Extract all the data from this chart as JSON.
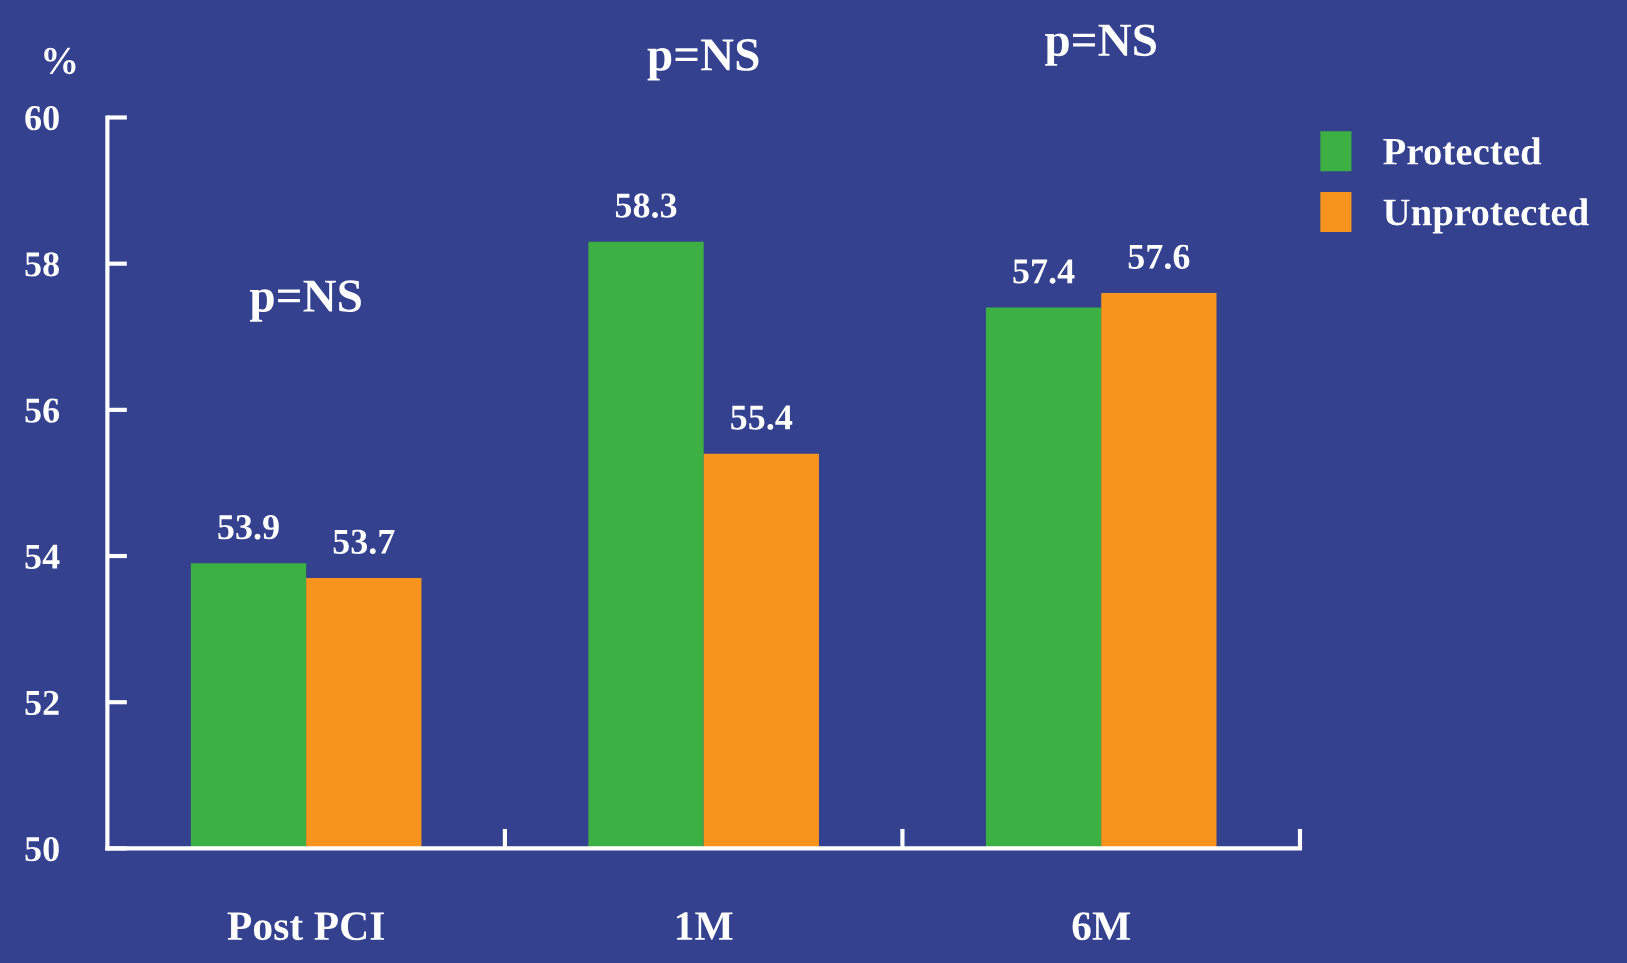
{
  "chart_data": {
    "type": "bar",
    "ylabel": "%",
    "categories": [
      "Post PCI",
      "1M",
      "6M"
    ],
    "series": [
      {
        "name": "Protected",
        "color": "#3cb043",
        "values": [
          53.9,
          58.3,
          57.4
        ]
      },
      {
        "name": "Unprotected",
        "color": "#f7941d",
        "values": [
          53.7,
          55.4,
          57.6
        ]
      }
    ],
    "ylim": [
      50,
      60
    ],
    "yticks": [
      50,
      52,
      54,
      56,
      58,
      60
    ],
    "data_labels": true,
    "legend": "top right",
    "grid": false,
    "annotations": [
      "p=NS",
      "p=NS",
      "p=NS"
    ]
  }
}
